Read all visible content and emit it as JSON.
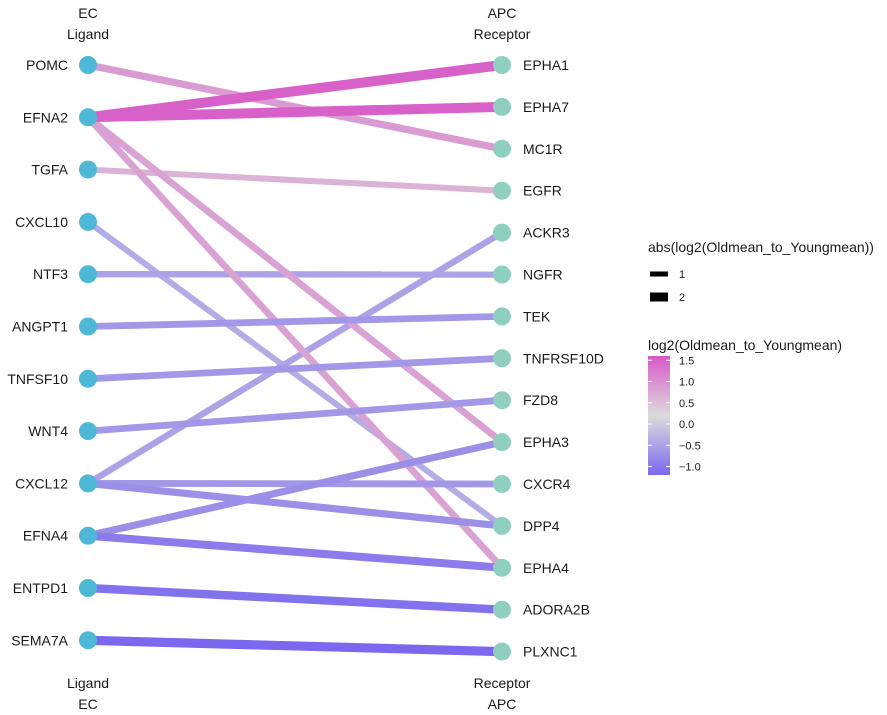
{
  "headers": {
    "top_left_group": "EC",
    "top_left_role": "Ligand",
    "top_right_group": "APC",
    "top_right_role": "Receptor",
    "bottom_left_role": "Ligand",
    "bottom_left_group": "EC",
    "bottom_right_role": "Receptor",
    "bottom_right_group": "APC"
  },
  "colors": {
    "ligand_node": "#4EB8D6",
    "receptor_node": "#8FCFC0",
    "scale_low": "#7B68EE",
    "scale_mid": "#DCDCDC",
    "scale_high": "#D858C8"
  },
  "ligands": [
    "POMC",
    "EFNA2",
    "TGFA",
    "CXCL10",
    "NTF3",
    "ANGPT1",
    "TNFSF10",
    "WNT4",
    "CXCL12",
    "EFNA4",
    "ENTPD1",
    "SEMA7A"
  ],
  "receptors": [
    "EPHA1",
    "EPHA7",
    "MC1R",
    "EGFR",
    "ACKR3",
    "NGFR",
    "TEK",
    "TNFRSF10D",
    "FZD8",
    "EPHA3",
    "CXCR4",
    "DPP4",
    "EPHA4",
    "ADORA2B",
    "PLXNC1"
  ],
  "links": [
    {
      "ligand": "POMC",
      "receptor": "MC1R",
      "log2fc": 0.8
    },
    {
      "ligand": "EFNA2",
      "receptor": "EPHA1",
      "log2fc": 1.5
    },
    {
      "ligand": "EFNA2",
      "receptor": "EPHA7",
      "log2fc": 1.5
    },
    {
      "ligand": "EFNA2",
      "receptor": "EPHA3",
      "log2fc": 0.7
    },
    {
      "ligand": "EFNA2",
      "receptor": "EPHA4",
      "log2fc": 0.7
    },
    {
      "ligand": "TGFA",
      "receptor": "EGFR",
      "log2fc": 0.5
    },
    {
      "ligand": "CXCL10",
      "receptor": "DPP4",
      "log2fc": -0.5
    },
    {
      "ligand": "NTF3",
      "receptor": "NGFR",
      "log2fc": -0.6
    },
    {
      "ligand": "ANGPT1",
      "receptor": "TEK",
      "log2fc": -0.7
    },
    {
      "ligand": "TNFSF10",
      "receptor": "TNFRSF10D",
      "log2fc": -0.7
    },
    {
      "ligand": "WNT4",
      "receptor": "FZD8",
      "log2fc": -0.7
    },
    {
      "ligand": "CXCL12",
      "receptor": "ACKR3",
      "log2fc": -0.6
    },
    {
      "ligand": "CXCL12",
      "receptor": "CXCR4",
      "log2fc": -0.7
    },
    {
      "ligand": "CXCL12",
      "receptor": "DPP4",
      "log2fc": -0.8
    },
    {
      "ligand": "EFNA4",
      "receptor": "EPHA3",
      "log2fc": -0.8
    },
    {
      "ligand": "EFNA4",
      "receptor": "EPHA4",
      "log2fc": -1.0
    },
    {
      "ligand": "ENTPD1",
      "receptor": "ADORA2B",
      "log2fc": -1.1
    },
    {
      "ligand": "SEMA7A",
      "receptor": "PLXNC1",
      "log2fc": -1.3
    }
  ],
  "legend": {
    "width_title": "abs(log2(Oldmean_to_Youngmean))",
    "width_entries": [
      {
        "label": "1",
        "value": 1
      },
      {
        "label": "2",
        "value": 2
      }
    ],
    "color_title": "log2(Oldmean_to_Youngmean)",
    "color_range": [
      -1.2,
      1.6
    ],
    "color_ticks": [
      {
        "label": "1.5",
        "value": 1.5
      },
      {
        "label": "1.0",
        "value": 1.0
      },
      {
        "label": "0.5",
        "value": 0.5
      },
      {
        "label": "0.0",
        "value": 0.0
      },
      {
        "label": "−0.5",
        "value": -0.5
      },
      {
        "label": "−1.0",
        "value": -1.0
      }
    ]
  }
}
